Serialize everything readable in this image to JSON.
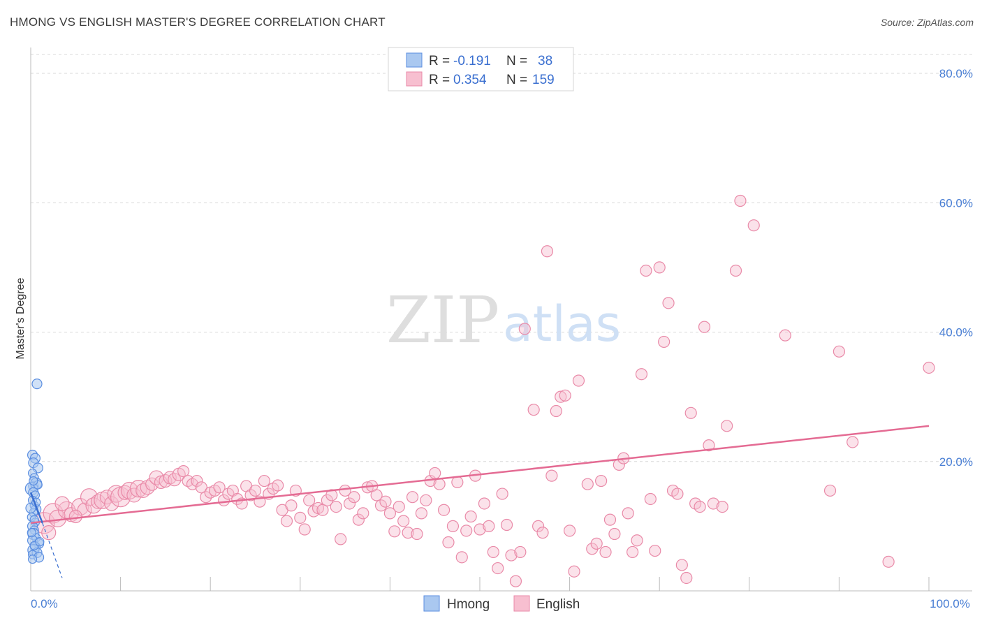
{
  "title": "HMONG VS ENGLISH MASTER'S DEGREE CORRELATION CHART",
  "source": "Source: ZipAtlas.com",
  "watermark": {
    "part1": "ZIP",
    "part2": "atlas"
  },
  "legend": {
    "rows": [
      {
        "r_label": "R =",
        "r_value": "-0.191",
        "n_label": "N =",
        "n_value": "38"
      },
      {
        "r_label": "R =",
        "r_value": "0.354",
        "n_label": "N =",
        "n_value": "159"
      }
    ]
  },
  "bottom_legend": [
    "Hmong",
    "English"
  ],
  "colors": {
    "hmong_fill": "#aac8f0",
    "hmong_stroke": "#5b8ee0",
    "hmong_line": "#3a6fd0",
    "english_fill": "#f7bfd0",
    "english_stroke": "#e98aa8",
    "english_line": "#e46b93",
    "grid": "#d8d8d8",
    "axis_text": "#4a7fd4"
  },
  "chart_data": {
    "type": "scatter",
    "ylabel": "Master's Degree",
    "xlim": [
      0,
      100
    ],
    "ylim": [
      0,
      84
    ],
    "y_ticks": [
      {
        "value": 20,
        "label": "20.0%"
      },
      {
        "value": 40,
        "label": "40.0%"
      },
      {
        "value": 60,
        "label": "60.0%"
      },
      {
        "value": 80,
        "label": "80.0%"
      }
    ],
    "x_tick_labels": [
      {
        "value": 0,
        "label": "0.0%"
      },
      {
        "value": 100,
        "label": "100.0%"
      }
    ],
    "x_minor_ticks": [
      10,
      20,
      30,
      40,
      50,
      60,
      70,
      80,
      90,
      100
    ],
    "grid": true,
    "series": [
      {
        "name": "Hmong",
        "trend": {
          "x1": 0,
          "y1": 15.2,
          "x2": 1.3,
          "y2": 10.5,
          "dash_to_x": 3.5,
          "dash_to_y": 2.0
        },
        "points": [
          [
            0.3,
            16.2,
            7
          ],
          [
            0.7,
            32.0,
            7
          ],
          [
            0.2,
            21.0,
            7
          ],
          [
            0.5,
            20.5,
            7
          ],
          [
            0.3,
            19.8,
            7
          ],
          [
            0.8,
            19.0,
            7
          ],
          [
            0.2,
            18.2,
            6
          ],
          [
            0.4,
            17.5,
            6
          ],
          [
            0.6,
            16.6,
            8
          ],
          [
            0.1,
            15.8,
            9
          ],
          [
            0.3,
            15.2,
            7
          ],
          [
            0.5,
            14.8,
            6
          ],
          [
            0.2,
            14.0,
            6
          ],
          [
            0.4,
            13.2,
            6
          ],
          [
            0.6,
            12.6,
            7
          ],
          [
            0.3,
            12.1,
            6
          ],
          [
            0.1,
            11.4,
            6
          ],
          [
            0.5,
            10.6,
            6
          ],
          [
            0.2,
            10.0,
            7
          ],
          [
            0.4,
            9.4,
            6
          ],
          [
            0.3,
            8.8,
            8
          ],
          [
            0.6,
            8.2,
            6
          ],
          [
            0.2,
            7.8,
            7
          ],
          [
            0.9,
            7.3,
            7
          ],
          [
            0.5,
            6.8,
            7
          ],
          [
            0.3,
            6.3,
            8
          ],
          [
            0.7,
            5.9,
            7
          ],
          [
            0.2,
            5.6,
            6
          ],
          [
            0.9,
            5.2,
            7
          ],
          [
            0.4,
            7.0,
            6
          ],
          [
            0.1,
            9.0,
            6
          ],
          [
            0.8,
            16.4,
            6
          ],
          [
            0.0,
            12.8,
            7
          ],
          [
            0.6,
            13.7,
            6
          ],
          [
            0.2,
            4.9,
            6
          ],
          [
            1.0,
            7.6,
            6
          ],
          [
            0.4,
            11.0,
            6
          ],
          [
            0.3,
            17.0,
            6
          ]
        ]
      },
      {
        "name": "English",
        "trend": {
          "x1": 0,
          "y1": 10.5,
          "x2": 100,
          "y2": 25.5
        },
        "points": [
          [
            1.5,
            10.5,
            15
          ],
          [
            2.5,
            12.0,
            14
          ],
          [
            3.0,
            11.2,
            12
          ],
          [
            4.0,
            12.5,
            12
          ],
          [
            4.5,
            11.8,
            10
          ],
          [
            5.5,
            13.0,
            12
          ],
          [
            6.0,
            12.5,
            10
          ],
          [
            6.5,
            14.5,
            12
          ],
          [
            7.0,
            13.2,
            11
          ],
          [
            7.5,
            13.8,
            10
          ],
          [
            8.0,
            14.0,
            12
          ],
          [
            8.5,
            14.5,
            10
          ],
          [
            9.0,
            13.5,
            10
          ],
          [
            9.5,
            15.0,
            12
          ],
          [
            10.0,
            14.5,
            14
          ],
          [
            10.5,
            15.2,
            10
          ],
          [
            11.0,
            15.5,
            12
          ],
          [
            11.5,
            14.8,
            10
          ],
          [
            12.0,
            15.8,
            12
          ],
          [
            12.5,
            15.5,
            10
          ],
          [
            13.0,
            16.0,
            10
          ],
          [
            13.5,
            16.5,
            9
          ],
          [
            14.0,
            17.5,
            10
          ],
          [
            14.5,
            16.8,
            9
          ],
          [
            15.0,
            17.0,
            9
          ],
          [
            15.5,
            17.5,
            9
          ],
          [
            16.0,
            17.2,
            9
          ],
          [
            16.5,
            18.0,
            9
          ],
          [
            17.0,
            18.5,
            8
          ],
          [
            17.5,
            17.0,
            8
          ],
          [
            18.0,
            16.5,
            8
          ],
          [
            18.5,
            17.0,
            8
          ],
          [
            19.0,
            16.0,
            8
          ],
          [
            19.5,
            14.5,
            8
          ],
          [
            20.0,
            15.2,
            8
          ],
          [
            20.5,
            15.5,
            8
          ],
          [
            21.0,
            16.0,
            8
          ],
          [
            21.5,
            14.0,
            8
          ],
          [
            22.0,
            15.0,
            8
          ],
          [
            22.5,
            15.5,
            8
          ],
          [
            23.0,
            14.2,
            8
          ],
          [
            23.5,
            13.5,
            8
          ],
          [
            24.0,
            16.2,
            8
          ],
          [
            24.5,
            14.8,
            8
          ],
          [
            25.0,
            15.5,
            8
          ],
          [
            25.5,
            13.8,
            8
          ],
          [
            26.0,
            17.0,
            8
          ],
          [
            26.5,
            15.0,
            8
          ],
          [
            27.0,
            15.8,
            8
          ],
          [
            27.5,
            16.3,
            8
          ],
          [
            28.0,
            12.5,
            8
          ],
          [
            28.5,
            10.8,
            8
          ],
          [
            29.0,
            13.2,
            8
          ],
          [
            29.5,
            15.5,
            8
          ],
          [
            30.0,
            11.3,
            8
          ],
          [
            30.5,
            9.5,
            8
          ],
          [
            31.0,
            14.0,
            8
          ],
          [
            31.5,
            12.3,
            8
          ],
          [
            32.0,
            12.8,
            8
          ],
          [
            32.5,
            12.5,
            8
          ],
          [
            33.0,
            14.0,
            8
          ],
          [
            33.5,
            14.8,
            8
          ],
          [
            34.0,
            13.0,
            8
          ],
          [
            34.5,
            8.0,
            8
          ],
          [
            35.0,
            15.5,
            8
          ],
          [
            35.5,
            13.5,
            8
          ],
          [
            36.0,
            14.5,
            8
          ],
          [
            36.5,
            11.0,
            8
          ],
          [
            37.0,
            12.0,
            8
          ],
          [
            37.5,
            16.0,
            8
          ],
          [
            38.0,
            16.2,
            8
          ],
          [
            38.5,
            14.8,
            8
          ],
          [
            39.0,
            13.2,
            8
          ],
          [
            39.5,
            13.8,
            8
          ],
          [
            40.0,
            12.0,
            8
          ],
          [
            40.5,
            9.2,
            8
          ],
          [
            41.0,
            13.0,
            8
          ],
          [
            41.5,
            10.8,
            8
          ],
          [
            42.0,
            9.0,
            8
          ],
          [
            42.5,
            14.5,
            8
          ],
          [
            43.0,
            8.8,
            8
          ],
          [
            43.5,
            12.0,
            8
          ],
          [
            44.0,
            14.0,
            8
          ],
          [
            44.5,
            17.0,
            8
          ],
          [
            45.0,
            18.2,
            8
          ],
          [
            45.5,
            16.5,
            8
          ],
          [
            46.0,
            12.5,
            8
          ],
          [
            46.5,
            7.5,
            8
          ],
          [
            47.0,
            10.0,
            8
          ],
          [
            47.5,
            16.8,
            8
          ],
          [
            48.0,
            5.2,
            8
          ],
          [
            48.5,
            9.3,
            8
          ],
          [
            49.0,
            11.5,
            8
          ],
          [
            49.5,
            17.8,
            8
          ],
          [
            50.0,
            9.5,
            8
          ],
          [
            50.5,
            13.5,
            8
          ],
          [
            51.0,
            10.0,
            8
          ],
          [
            51.5,
            6.0,
            8
          ],
          [
            52.0,
            3.5,
            8
          ],
          [
            52.5,
            15.0,
            8
          ],
          [
            53.0,
            10.2,
            8
          ],
          [
            53.5,
            5.5,
            8
          ],
          [
            54.0,
            1.5,
            8
          ],
          [
            54.5,
            6.0,
            8
          ],
          [
            55.0,
            40.5,
            8
          ],
          [
            56.0,
            28.0,
            8
          ],
          [
            56.5,
            10.0,
            8
          ],
          [
            57.0,
            9.0,
            8
          ],
          [
            57.5,
            52.5,
            8
          ],
          [
            58.0,
            17.8,
            8
          ],
          [
            58.5,
            27.8,
            8
          ],
          [
            59.0,
            30.0,
            8
          ],
          [
            59.5,
            30.2,
            8
          ],
          [
            60.0,
            9.3,
            8
          ],
          [
            60.5,
            3.0,
            8
          ],
          [
            61.0,
            32.5,
            8
          ],
          [
            62.0,
            16.5,
            8
          ],
          [
            62.5,
            6.5,
            8
          ],
          [
            63.0,
            7.3,
            8
          ],
          [
            63.5,
            17.0,
            8
          ],
          [
            64.0,
            6.0,
            8
          ],
          [
            64.5,
            11.0,
            8
          ],
          [
            65.0,
            8.8,
            8
          ],
          [
            65.5,
            19.5,
            8
          ],
          [
            66.0,
            20.5,
            8
          ],
          [
            66.5,
            12.0,
            8
          ],
          [
            67.0,
            6.0,
            8
          ],
          [
            67.5,
            7.8,
            8
          ],
          [
            68.0,
            33.5,
            8
          ],
          [
            68.5,
            49.5,
            8
          ],
          [
            69.0,
            14.2,
            8
          ],
          [
            69.5,
            6.2,
            8
          ],
          [
            70.0,
            50.0,
            8
          ],
          [
            70.5,
            38.5,
            8
          ],
          [
            71.0,
            44.5,
            8
          ],
          [
            71.5,
            15.5,
            8
          ],
          [
            72.0,
            15.0,
            8
          ],
          [
            72.5,
            4.0,
            8
          ],
          [
            73.0,
            2.0,
            8
          ],
          [
            73.5,
            27.5,
            8
          ],
          [
            74.0,
            13.5,
            8
          ],
          [
            74.5,
            13.0,
            8
          ],
          [
            75.0,
            40.8,
            8
          ],
          [
            75.5,
            22.5,
            8
          ],
          [
            76.0,
            13.5,
            8
          ],
          [
            77.0,
            13.0,
            8
          ],
          [
            77.5,
            25.5,
            8
          ],
          [
            78.5,
            49.5,
            8
          ],
          [
            79.0,
            60.3,
            8
          ],
          [
            80.5,
            56.5,
            8
          ],
          [
            84.0,
            39.5,
            8
          ],
          [
            89.0,
            15.5,
            8
          ],
          [
            90.0,
            37.0,
            8
          ],
          [
            91.5,
            23.0,
            8
          ],
          [
            95.5,
            4.5,
            8
          ],
          [
            100.0,
            34.5,
            8
          ],
          [
            2.0,
            9.0,
            10
          ],
          [
            3.5,
            13.5,
            10
          ],
          [
            5.0,
            11.5,
            9
          ]
        ]
      }
    ]
  }
}
